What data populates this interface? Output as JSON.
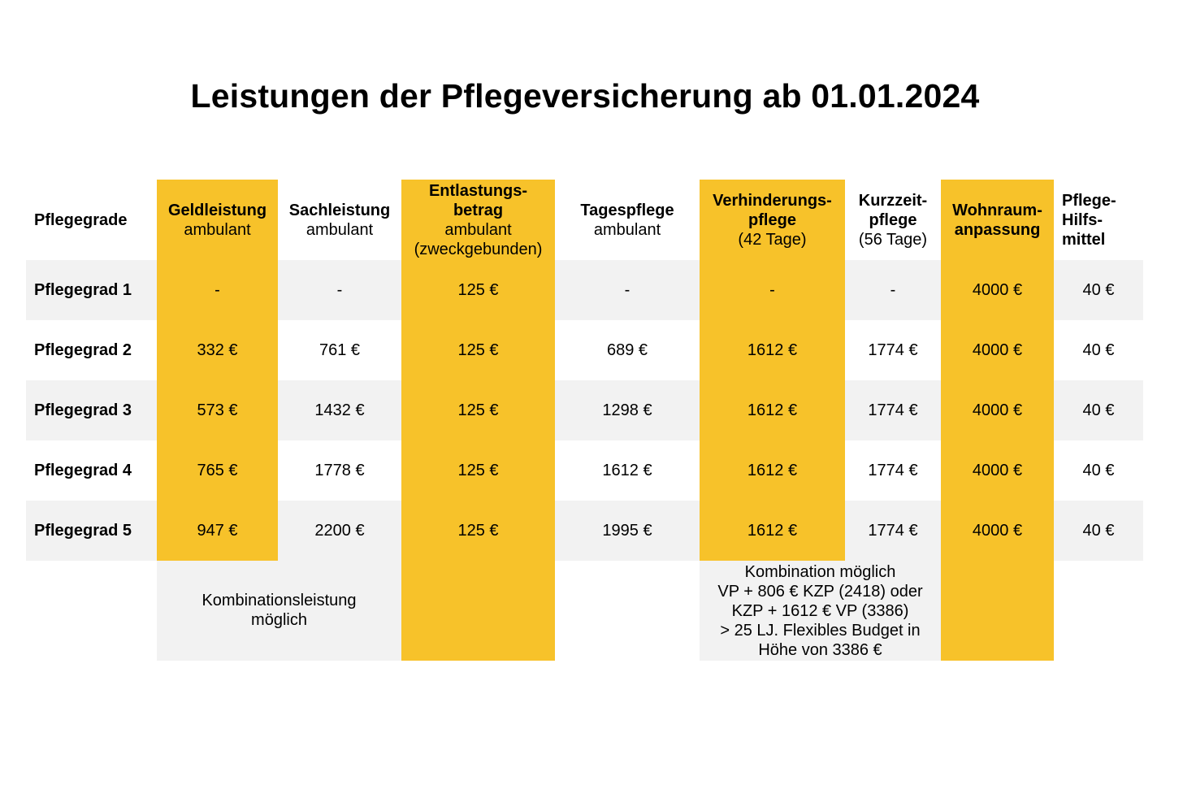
{
  "title": "Leistungen der Pflegeversicherung ab 01.01.2024",
  "colors": {
    "highlight": "#f7c22a",
    "row_stripe": "#f2f2f2"
  },
  "header": {
    "pflegegrade": "Pflegegrade",
    "geld": [
      "Geldleistung",
      "ambulant"
    ],
    "sach": [
      "Sachleistung",
      "ambulant"
    ],
    "entlastung": [
      "Entlastungs-",
      "betrag",
      "ambulant",
      "(zweckgebunden)"
    ],
    "tages": [
      "Tagespflege",
      "ambulant"
    ],
    "verhinderung": [
      "Verhinderungs-",
      "pflege",
      "(42 Tage)"
    ],
    "kurzzeit": [
      "Kurzzeit-",
      "pflege",
      "(56 Tage)"
    ],
    "wohnraum": [
      "Wohnraum-",
      "anpassung"
    ],
    "hilfsmittel": [
      "Pflege-",
      "Hilfs-",
      "mittel"
    ]
  },
  "rows": [
    {
      "label": "Pflegegrad 1",
      "values": [
        "-",
        "-",
        "125 €",
        "-",
        "-",
        "-",
        "4000 €",
        "40 €"
      ]
    },
    {
      "label": "Pflegegrad 2",
      "values": [
        "332 €",
        "761 €",
        "125 €",
        "689 €",
        "1612 €",
        "1774 €",
        "4000 €",
        "40 €"
      ]
    },
    {
      "label": "Pflegegrad 3",
      "values": [
        "573 €",
        "1432 €",
        "125 €",
        "1298 €",
        "1612 €",
        "1774 €",
        "4000 €",
        "40 €"
      ]
    },
    {
      "label": "Pflegegrad 4",
      "values": [
        "765 €",
        "1778 €",
        "125 €",
        "1612 €",
        "1612 €",
        "1774 €",
        "4000 €",
        "40 €"
      ]
    },
    {
      "label": "Pflegegrad 5",
      "values": [
        "947 €",
        "2200 €",
        "125 €",
        "1995 €",
        "1612 €",
        "1774 €",
        "4000 €",
        "40 €"
      ]
    }
  ],
  "notes": {
    "kombinationsleistung": [
      "Kombinationsleistung",
      "möglich"
    ],
    "kombination": [
      "Kombination möglich",
      "VP + 806 € KZP (2418) oder",
      "KZP + 1612 € VP (3386)",
      "> 25 LJ. Flexibles Budget in",
      "Höhe von 3386 €"
    ]
  }
}
